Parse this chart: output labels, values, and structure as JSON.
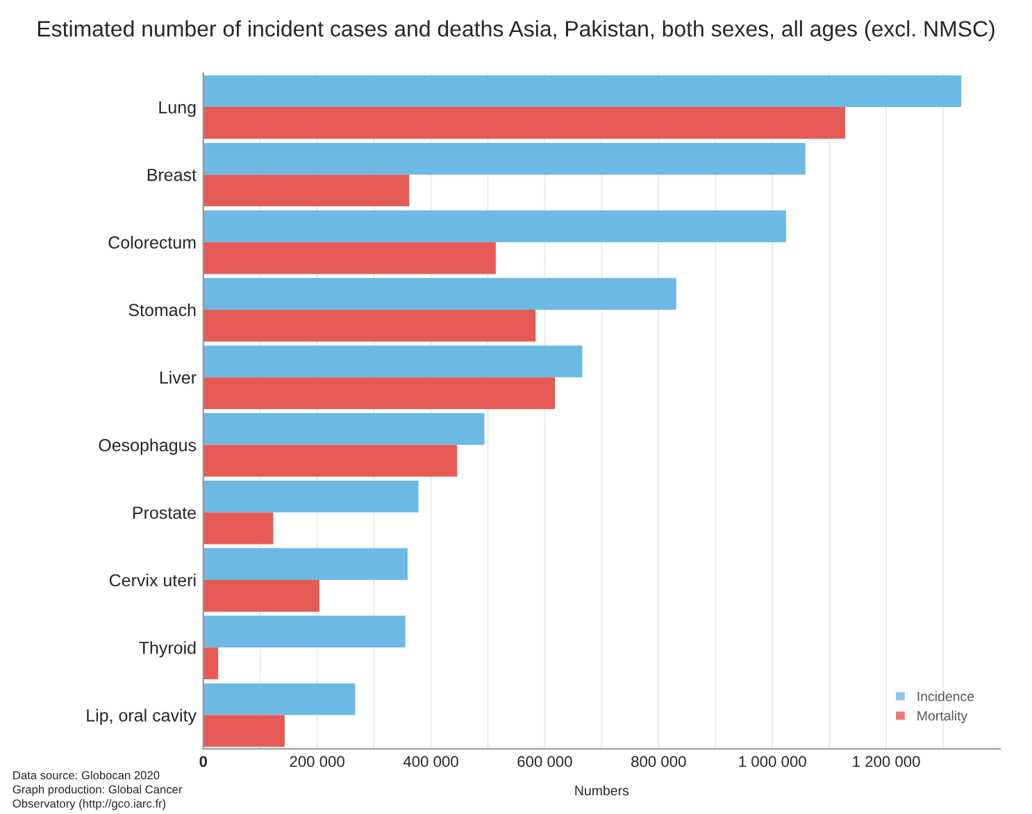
{
  "chart_data": {
    "type": "bar",
    "orientation": "horizontal",
    "title": "Estimated number of incident cases and deaths Asia, Pakistan, both sexes, all ages (excl. NMSC)",
    "xlabel": "Numbers",
    "categories": [
      "Lung",
      "Breast",
      "Colorectum",
      "Stomach",
      "Liver",
      "Oesophagus",
      "Prostate",
      "Cervix uteri",
      "Thyroid",
      "Lip, oral cavity"
    ],
    "series": [
      {
        "name": "Incidence",
        "color": "#6cb9e4",
        "values": [
          1332000,
          1058000,
          1024000,
          831000,
          666000,
          494000,
          378000,
          359000,
          355000,
          267000
        ]
      },
      {
        "name": "Mortality",
        "color": "#e65a55",
        "values": [
          1128000,
          362000,
          514000,
          584000,
          618000,
          446000,
          123000,
          204000,
          26000,
          143000
        ]
      }
    ],
    "xlim": [
      0,
      1400000
    ],
    "xticks": [
      0,
      {
        "value": 100000,
        "label": null
      },
      {
        "value": 200000,
        "label": "200 000"
      },
      {
        "value": 300000,
        "label": null
      },
      {
        "value": 400000,
        "label": "400 000"
      },
      {
        "value": 500000,
        "label": null
      },
      {
        "value": 600000,
        "label": "600 000"
      },
      {
        "value": 700000,
        "label": null
      },
      {
        "value": 800000,
        "label": "800 000"
      },
      {
        "value": 900000,
        "label": null
      },
      {
        "value": 1000000,
        "label": "1 000 000"
      },
      {
        "value": 1100000,
        "label": null
      },
      {
        "value": 1200000,
        "label": "1 200 000"
      },
      {
        "value": 1300000,
        "label": null
      }
    ],
    "grid": "x",
    "legend": "bottom right",
    "annotations": [
      "Data source: Globocan 2020\nGraph production: Global Cancer\nObservatory (http://gco.iarc.fr)"
    ]
  }
}
